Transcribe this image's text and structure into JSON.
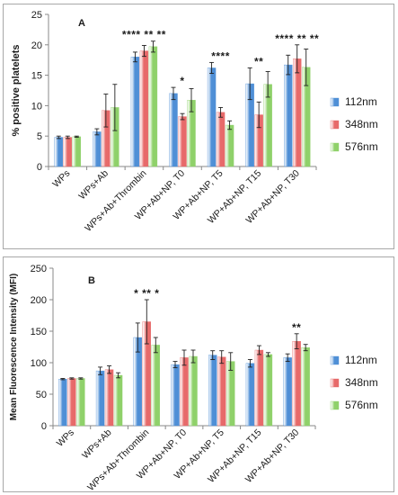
{
  "colors": {
    "series_112": "#4f8fd6",
    "series_348": "#e76a6a",
    "series_576": "#8fd16a",
    "axis": "#888888"
  },
  "chart_data": [
    {
      "type": "bar",
      "panel_label": "A",
      "ylabel": "% positive platelets",
      "xlabel": "",
      "ylim": [
        0,
        25
      ],
      "yticks": [
        0,
        5,
        10,
        15,
        20,
        25
      ],
      "grid": false,
      "legend_position": "right",
      "categories": [
        "WPs",
        "WPs+Ab",
        "WPs+Ab+Thrombin",
        "WP+Ab+NP, T0",
        "WP+Ab+NP, T5",
        "WP+Ab+NP, T15",
        "WP+Ab+NP, T30"
      ],
      "series": [
        {
          "name": "112nm",
          "values": [
            4.8,
            5.7,
            18.0,
            12.0,
            16.2,
            13.6,
            16.7
          ],
          "errors": [
            0.2,
            0.5,
            0.8,
            1.0,
            0.9,
            2.6,
            1.6
          ]
        },
        {
          "name": "348nm",
          "values": [
            4.8,
            9.2,
            19.0,
            8.2,
            8.9,
            8.5,
            17.7
          ],
          "errors": [
            0.2,
            2.7,
            0.9,
            0.5,
            0.8,
            2.1,
            2.3
          ]
        },
        {
          "name": "576nm",
          "values": [
            4.9,
            9.7,
            19.7,
            10.9,
            6.8,
            13.5,
            16.3
          ],
          "errors": [
            0.1,
            3.8,
            0.9,
            1.9,
            0.7,
            2.1,
            3.0
          ]
        }
      ],
      "annotations": [
        "",
        "",
        "**** ** **",
        "*",
        "****",
        "**",
        "**** ** **"
      ]
    },
    {
      "type": "bar",
      "panel_label": "B",
      "ylabel": "Mean Fluorescence Intensity (MFI)",
      "xlabel": "",
      "ylim": [
        0,
        250
      ],
      "yticks": [
        0,
        50,
        100,
        150,
        200,
        250
      ],
      "grid": false,
      "legend_position": "right",
      "categories": [
        "WPs",
        "WPs+Ab",
        "WPs+Ab+Thrombin",
        "WP+Ab+NP, T0",
        "WP+Ab+NP, T5",
        "WP+Ab+NP, T15",
        "WP+Ab+NP, T30"
      ],
      "series": [
        {
          "name": "112nm",
          "values": [
            74,
            87,
            140,
            97,
            112,
            99,
            108
          ],
          "errors": [
            1,
            6,
            23,
            5,
            7,
            6,
            6
          ]
        },
        {
          "name": "348nm",
          "values": [
            75,
            89,
            165,
            108,
            109,
            120,
            134
          ],
          "errors": [
            1,
            6,
            35,
            12,
            10,
            7,
            12
          ]
        },
        {
          "name": "576nm",
          "values": [
            75,
            80,
            128,
            110,
            102,
            113,
            124
          ],
          "errors": [
            1,
            4,
            12,
            10,
            14,
            3,
            5
          ]
        }
      ],
      "annotations": [
        "",
        "",
        "* ** *",
        "",
        "",
        "",
        "**"
      ]
    }
  ]
}
